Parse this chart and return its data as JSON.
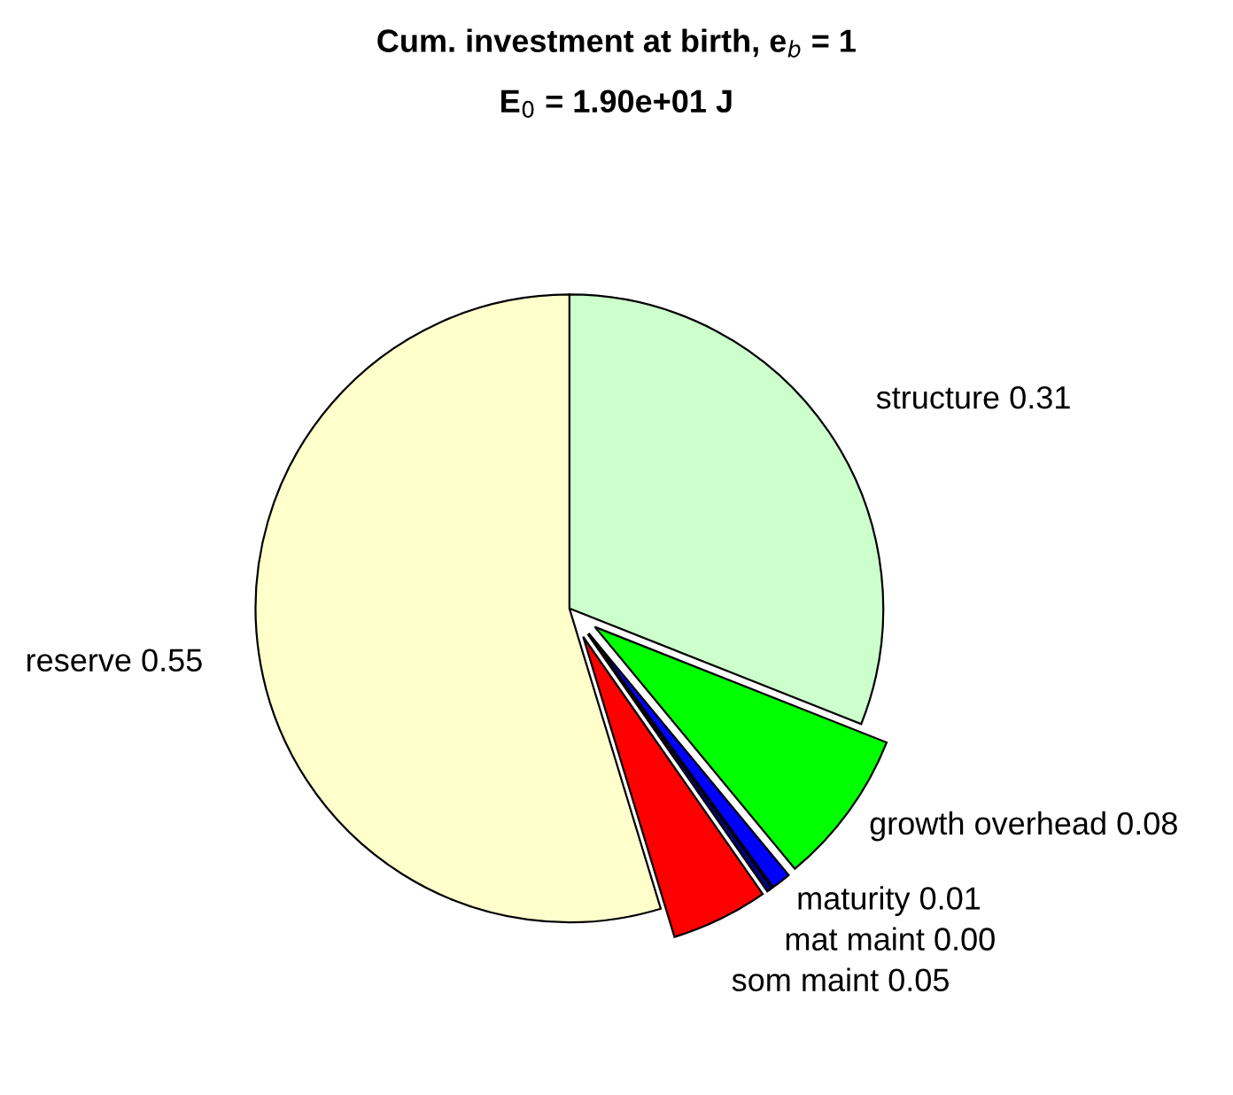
{
  "chart_data": {
    "type": "pie",
    "title": "Cum. investment at birth, e$_{b}$ = 1",
    "subtitle": "E$_{0}$ = 1.90e+01 J",
    "categories": [
      "structure",
      "growth overhead",
      "maturity",
      "mat maint",
      "som maint",
      "reserve"
    ],
    "values": [
      0.31,
      0.08,
      0.01,
      0.003,
      0.05,
      0.547
    ],
    "value_labels": [
      "0.31",
      "0.08",
      "0.01",
      "0.00",
      "0.05",
      "0.55"
    ],
    "colors": [
      "#ccffcc",
      "#00ff00",
      "#0000ff",
      "#000080",
      "#ff0000",
      "#ffffcc"
    ],
    "legend": false
  }
}
